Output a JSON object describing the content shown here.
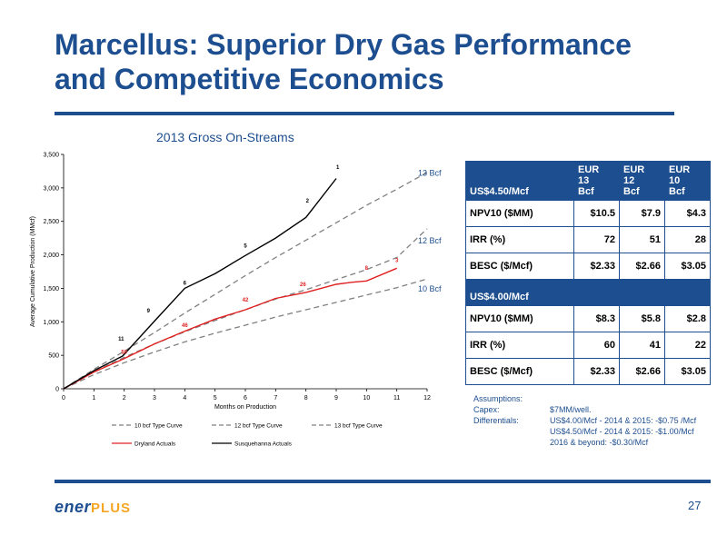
{
  "slide": {
    "title_line1": "Marcellus:  Superior Dry Gas Performance",
    "title_line2": "and Competitive Economics",
    "page_number": "27",
    "logo_text": "ener",
    "logo_plus": "PLUS"
  },
  "colors": {
    "brand_blue": "#1d4e8f",
    "accent_orange": "#f5a623",
    "dryland_red": "#e02020",
    "susquehanna_black": "#000000",
    "type_curve_gray": "#808080"
  },
  "chart_data": {
    "type": "line",
    "title": "2013 Gross On-Streams",
    "xlabel": "Months on Production",
    "ylabel": "Average Cumulative Production (MMcf)",
    "xlim": [
      0,
      12
    ],
    "ylim": [
      0,
      3500
    ],
    "x_ticks": [
      "0",
      "1",
      "2",
      "3",
      "4",
      "5",
      "6",
      "7",
      "8",
      "9",
      "10",
      "11",
      "12"
    ],
    "y_ticks": [
      "0",
      "500",
      "1,000",
      "1,500",
      "2,000",
      "2,500",
      "3,000",
      "3,500"
    ],
    "grid": false,
    "legend_position": "bottom",
    "series": [
      {
        "name": "10 bcf Type Curve",
        "style": "dashed",
        "color": "#808080",
        "x": [
          0,
          1,
          2,
          3,
          4,
          5,
          6,
          7,
          8,
          9,
          10,
          11,
          12
        ],
        "y": [
          0,
          210,
          390,
          550,
          700,
          830,
          950,
          1070,
          1180,
          1290,
          1400,
          1510,
          1640
        ]
      },
      {
        "name": "12 bcf Type Curve",
        "style": "dashed",
        "color": "#808080",
        "x": [
          0,
          1,
          2,
          3,
          4,
          5,
          6,
          7,
          8,
          9,
          10,
          11,
          12
        ],
        "y": [
          0,
          250,
          470,
          670,
          850,
          1020,
          1180,
          1340,
          1480,
          1630,
          1780,
          1960,
          2390
        ]
      },
      {
        "name": "13 bcf Type Curve",
        "style": "dashed",
        "color": "#808080",
        "x": [
          0,
          1,
          2,
          3,
          4,
          5,
          6,
          7,
          8,
          9,
          10,
          11,
          12
        ],
        "y": [
          0,
          290,
          560,
          840,
          1130,
          1410,
          1690,
          1960,
          2220,
          2480,
          2740,
          2980,
          3230
        ]
      },
      {
        "name": "Dryland Actuals",
        "style": "solid",
        "color": "#e02020",
        "x": [
          0,
          1,
          2,
          3,
          4,
          5,
          6,
          7,
          8,
          9,
          9.5,
          10,
          11
        ],
        "y": [
          0,
          250,
          450,
          670,
          860,
          1040,
          1180,
          1350,
          1440,
          1560,
          1590,
          1610,
          1800
        ]
      },
      {
        "name": "Susquehanna Actuals",
        "style": "solid",
        "color": "#000000",
        "x": [
          0,
          1,
          1.95,
          3,
          4,
          5,
          6,
          7,
          8,
          9
        ],
        "y": [
          0,
          270,
          490,
          1010,
          1500,
          1720,
          1990,
          2250,
          2560,
          3140
        ]
      }
    ],
    "annotations": [
      {
        "text": "13 Bcf",
        "x": 11.7,
        "y": 3180,
        "color": "#1d4e8f"
      },
      {
        "text": "12 Bcf",
        "x": 11.7,
        "y": 2170,
        "color": "#1d4e8f"
      },
      {
        "text": "10 Bcf",
        "x": 11.7,
        "y": 1450,
        "color": "#1d4e8f"
      },
      {
        "text": "1",
        "x": 9.05,
        "y": 3280,
        "color": "#000000"
      },
      {
        "text": "2",
        "x": 8.05,
        "y": 2780,
        "color": "#000000"
      },
      {
        "text": "5",
        "x": 6.0,
        "y": 2110,
        "color": "#000000"
      },
      {
        "text": "6",
        "x": 4.0,
        "y": 1550,
        "color": "#000000"
      },
      {
        "text": "9",
        "x": 2.8,
        "y": 1140,
        "color": "#000000"
      },
      {
        "text": "11",
        "x": 1.9,
        "y": 720,
        "color": "#000000"
      },
      {
        "text": "3",
        "x": 11.0,
        "y": 1890,
        "color": "#e02020"
      },
      {
        "text": "8",
        "x": 10.0,
        "y": 1780,
        "color": "#e02020"
      },
      {
        "text": "26",
        "x": 7.9,
        "y": 1530,
        "color": "#e02020"
      },
      {
        "text": "42",
        "x": 6.0,
        "y": 1300,
        "color": "#e02020"
      },
      {
        "text": "46",
        "x": 4.0,
        "y": 920,
        "color": "#e02020"
      },
      {
        "text": "50",
        "x": 2.0,
        "y": 520,
        "color": "#e02020"
      }
    ]
  },
  "econ_table": {
    "section1": {
      "label": "US$4.50/Mcf",
      "headers": [
        "EUR\n13\nBcf",
        "EUR\n12\nBcf",
        "EUR\n10\nBcf"
      ],
      "rows": [
        {
          "label": "NPV10 ($MM)",
          "values": [
            "$10.5",
            "$7.9",
            "$4.3"
          ]
        },
        {
          "label": "IRR (%)",
          "values": [
            "72",
            "51",
            "28"
          ]
        },
        {
          "label": "BESC ($/Mcf)",
          "values": [
            "$2.33",
            "$2.66",
            "$3.05"
          ]
        }
      ]
    },
    "section2": {
      "label": "US$4.00/Mcf",
      "rows": [
        {
          "label": "NPV10 ($MM)",
          "values": [
            "$8.3",
            "$5.8",
            "$2.8"
          ]
        },
        {
          "label": "IRR (%)",
          "values": [
            "60",
            "41",
            "22"
          ]
        },
        {
          "label": "BESC ($/Mcf)",
          "values": [
            "$2.33",
            "$2.66",
            "$3.05"
          ]
        }
      ]
    }
  },
  "assumptions": {
    "heading": "Assumptions:",
    "capex_label": "Capex:",
    "capex_value": "$7MM/well.",
    "diff_label": "Differentials:",
    "diff_line1": "US$4.00/Mcf - 2014 & 2015:  -$0.75 /Mcf",
    "diff_line2": "US$4.50/Mcf - 2014 & 2015:  -$1.00/Mcf",
    "diff_line3": "2016 & beyond: -$0.30/Mcf"
  }
}
